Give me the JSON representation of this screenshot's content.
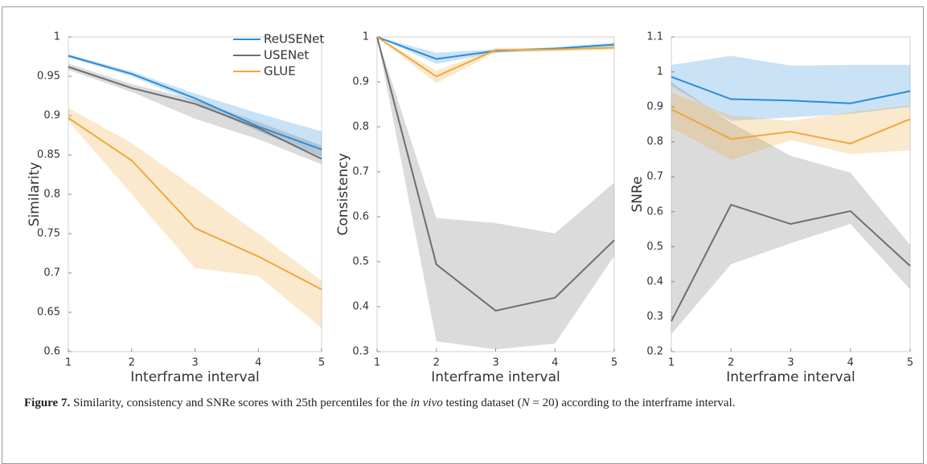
{
  "chart_data": [
    {
      "type": "line",
      "xlabel": "Interframe interval",
      "ylabel": "Similarity",
      "legend": "upper right",
      "x": [
        1,
        2,
        3,
        4,
        5
      ],
      "xlim": [
        1,
        5
      ],
      "xticks": [
        1,
        2,
        3,
        4,
        5
      ],
      "ylim": [
        0.6,
        1
      ],
      "yticks": [
        0.6,
        0.65,
        0.7,
        0.75,
        0.8,
        0.85,
        0.9,
        0.95,
        1
      ],
      "series": [
        {
          "name": "ReUSENet",
          "color": "#2b8cd8",
          "values": [
            0.976,
            0.953,
            0.922,
            0.886,
            0.857
          ],
          "lower": [
            0.974,
            0.95,
            0.917,
            0.88,
            0.848
          ],
          "upper": [
            0.978,
            0.956,
            0.928,
            0.903,
            0.88
          ]
        },
        {
          "name": "USENet",
          "color": "#6e6e6e",
          "values": [
            0.962,
            0.935,
            0.915,
            0.884,
            0.845
          ],
          "lower": [
            0.958,
            0.93,
            0.896,
            0.87,
            0.838
          ],
          "upper": [
            0.966,
            0.94,
            0.92,
            0.892,
            0.862
          ]
        },
        {
          "name": "GLUE",
          "color": "#efa83a",
          "values": [
            0.897,
            0.843,
            0.757,
            0.721,
            0.679
          ],
          "lower": [
            0.893,
            0.8,
            0.706,
            0.696,
            0.63
          ],
          "upper": [
            0.91,
            0.865,
            0.808,
            0.75,
            0.69
          ]
        }
      ]
    },
    {
      "type": "line",
      "xlabel": "Interframe interval",
      "ylabel": "Consistency",
      "x": [
        1,
        2,
        3,
        4,
        5
      ],
      "xlim": [
        1,
        5
      ],
      "xticks": [
        1,
        2,
        3,
        4,
        5
      ],
      "ylim": [
        0.3,
        1
      ],
      "yticks": [
        0.3,
        0.4,
        0.5,
        0.6,
        0.7,
        0.8,
        0.9,
        1
      ],
      "series": [
        {
          "color": "#2b8cd8",
          "values": [
            1,
            0.951,
            0.969,
            0.974,
            0.983
          ],
          "lower": [
            1,
            0.94,
            0.965,
            0.97,
            0.978
          ],
          "upper": [
            1,
            0.965,
            0.972,
            0.977,
            0.987
          ]
        },
        {
          "color": "#6e6e6e",
          "values": [
            1,
            0.494,
            0.391,
            0.42,
            0.548
          ],
          "lower": [
            1,
            0.323,
            0.305,
            0.318,
            0.513
          ],
          "upper": [
            1,
            0.597,
            0.586,
            0.563,
            0.676
          ]
        },
        {
          "color": "#efa83a",
          "values": [
            1,
            0.912,
            0.971,
            0.972,
            0.976
          ],
          "lower": [
            1,
            0.897,
            0.965,
            0.968,
            0.972
          ],
          "upper": [
            1,
            0.925,
            0.975,
            0.976,
            0.98
          ]
        }
      ]
    },
    {
      "type": "line",
      "xlabel": "Interframe interval",
      "ylabel": "SNRe",
      "x": [
        1,
        2,
        3,
        4,
        5
      ],
      "xlim": [
        1,
        5
      ],
      "xticks": [
        1,
        2,
        3,
        4,
        5
      ],
      "ylim": [
        0.2,
        1.1
      ],
      "yticks": [
        0.2,
        0.3,
        0.4,
        0.5,
        0.6,
        0.7,
        0.8,
        0.9,
        1,
        1.1
      ],
      "series": [
        {
          "color": "#2b8cd8",
          "values": [
            0.986,
            0.922,
            0.918,
            0.91,
            0.945
          ],
          "lower": [
            0.96,
            0.86,
            0.87,
            0.88,
            0.9
          ],
          "upper": [
            1.02,
            1.046,
            1.018,
            1.02,
            1.02
          ]
        },
        {
          "color": "#6e6e6e",
          "values": [
            0.287,
            0.62,
            0.565,
            0.602,
            0.445
          ],
          "lower": [
            0.25,
            0.45,
            0.51,
            0.565,
            0.378
          ],
          "upper": [
            0.97,
            0.855,
            0.76,
            0.712,
            0.505
          ]
        },
        {
          "color": "#efa83a",
          "values": [
            0.893,
            0.808,
            0.829,
            0.795,
            0.865
          ],
          "lower": [
            0.84,
            0.748,
            0.805,
            0.765,
            0.775
          ],
          "upper": [
            0.94,
            0.875,
            0.86,
            0.885,
            0.905
          ]
        }
      ]
    }
  ],
  "caption": {
    "label": "Figure 7.",
    "parts": [
      "Similarity, consistency and SNRe scores with 25th percentiles for the ",
      "in vivo",
      " testing dataset (",
      "N",
      " = 20) according to the interframe interval."
    ]
  }
}
